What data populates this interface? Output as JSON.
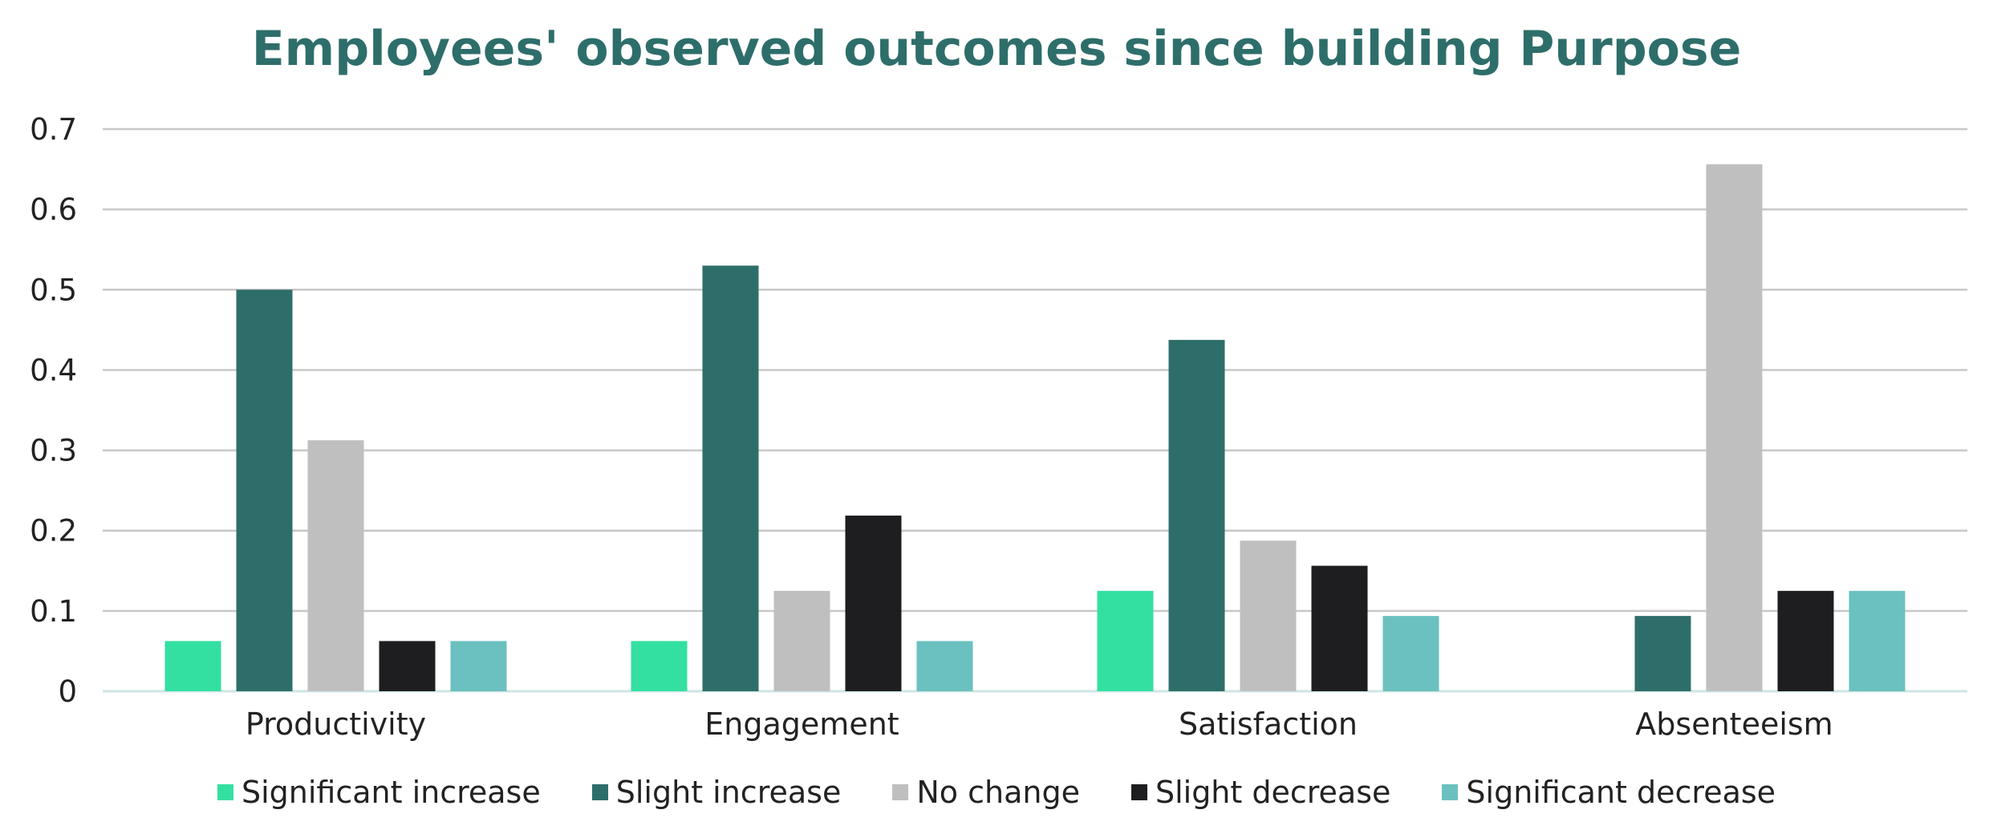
{
  "chart_data": {
    "type": "bar",
    "title": "Employees' observed outcomes since building Purpose",
    "xlabel": "",
    "ylabel": "",
    "categories": [
      "Productivity",
      "Engagement",
      "Satisfaction",
      "Absenteeism"
    ],
    "ylim": [
      0,
      0.7
    ],
    "yticks": [
      "0",
      "0.1",
      "0.2",
      "0.3",
      "0.4",
      "0.5",
      "0.6",
      "0.7"
    ],
    "grid": true,
    "legend_position": "bottom",
    "series": [
      {
        "name": "Significant increase",
        "color": "#34E0A1",
        "values": [
          0.0625,
          0.0625,
          0.125,
          0
        ]
      },
      {
        "name": "Slight increase",
        "color": "#2E6E6A",
        "values": [
          0.5,
          0.53,
          0.4375,
          0.09375
        ]
      },
      {
        "name": "No change",
        "color": "#BFBFBF",
        "values": [
          0.3125,
          0.125,
          0.1875,
          0.65625
        ]
      },
      {
        "name": "Slight decrease",
        "color": "#1E1E20",
        "values": [
          0.0625,
          0.21875,
          0.15625,
          0.125
        ]
      },
      {
        "name": "Significant decrease",
        "color": "#6BC1BF",
        "values": [
          0.0625,
          0.0625,
          0.09375,
          0.125
        ]
      }
    ]
  }
}
